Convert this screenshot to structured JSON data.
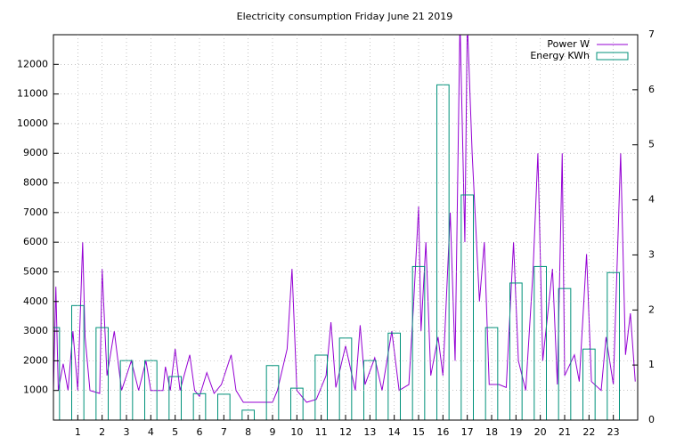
{
  "chart_data": {
    "type": "line",
    "title": "Electricity consumption Friday June 21 2019",
    "xlim": [
      0,
      24
    ],
    "xticks": [
      1,
      2,
      3,
      4,
      5,
      6,
      7,
      8,
      9,
      10,
      11,
      12,
      13,
      14,
      15,
      16,
      17,
      18,
      19,
      20,
      21,
      22,
      23
    ],
    "ylim": [
      0,
      13000
    ],
    "yticks": [
      1000,
      2000,
      3000,
      4000,
      5000,
      6000,
      7000,
      8000,
      9000,
      10000,
      11000,
      12000
    ],
    "y2lim": [
      0,
      7
    ],
    "y2ticks": [
      0,
      1,
      2,
      3,
      4,
      5,
      6,
      7
    ],
    "grid": true,
    "legend": "top-right",
    "series": [
      {
        "name": "Power W",
        "color": "#9400d3",
        "type": "line",
        "x": [
          0,
          0.1,
          0.2,
          0.4,
          0.6,
          0.8,
          1.0,
          1.2,
          1.3,
          1.5,
          1.9,
          2.0,
          2.2,
          2.5,
          2.8,
          3.2,
          3.5,
          3.8,
          4.0,
          4.5,
          4.6,
          4.8,
          5.0,
          5.2,
          5.6,
          5.8,
          6.0,
          6.3,
          6.6,
          6.9,
          7.3,
          7.5,
          7.8,
          8.5,
          9.0,
          9.2,
          9.6,
          9.8,
          10.0,
          10.4,
          10.8,
          11.2,
          11.4,
          11.6,
          12.0,
          12.4,
          12.6,
          12.8,
          13.2,
          13.5,
          13.9,
          14.2,
          14.6,
          14.8,
          15.0,
          15.1,
          15.3,
          15.5,
          15.8,
          16.0,
          16.3,
          16.5,
          16.7,
          16.9,
          17.0,
          17.2,
          17.5,
          17.7,
          17.9,
          18.3,
          18.6,
          18.9,
          19.1,
          19.4,
          19.7,
          19.9,
          20.1,
          20.5,
          20.7,
          20.9,
          21.0,
          21.4,
          21.6,
          21.9,
          22.1,
          22.5,
          22.7,
          23.0,
          23.3,
          23.5,
          23.7,
          23.9
        ],
        "values": [
          1000,
          4500,
          1000,
          1900,
          1000,
          3000,
          1000,
          6000,
          2800,
          1000,
          900,
          5100,
          1500,
          3000,
          1000,
          2000,
          1000,
          2000,
          1000,
          1000,
          1800,
          1000,
          2400,
          1000,
          2200,
          1000,
          800,
          1600,
          900,
          1200,
          2200,
          1000,
          600,
          600,
          600,
          1000,
          2400,
          5100,
          1000,
          600,
          700,
          1500,
          3300,
          1100,
          2500,
          1000,
          3200,
          1200,
          2100,
          1000,
          3000,
          1000,
          1200,
          4000,
          7200,
          3000,
          6000,
          1500,
          2800,
          1500,
          7000,
          2000,
          13500,
          6000,
          13500,
          9000,
          4000,
          6000,
          1200,
          1200,
          1100,
          6000,
          2000,
          1000,
          5000,
          9000,
          2000,
          5100,
          1200,
          9000,
          1500,
          2200,
          1300,
          5600,
          1300,
          1000,
          2800,
          1200,
          9000,
          2200,
          3600,
          1300
        ]
      },
      {
        "name": "Energy KWh",
        "color": "#00917a",
        "type": "bar",
        "axis": "y2",
        "x": [
          0,
          1,
          2,
          3,
          4,
          5,
          6,
          7,
          8,
          9,
          10,
          11,
          12,
          13,
          14,
          15,
          16,
          17,
          18,
          19,
          20,
          21,
          22,
          23
        ],
        "values": [
          1.68,
          2.08,
          1.68,
          1.08,
          1.08,
          0.79,
          0.48,
          0.47,
          0.18,
          0.99,
          0.58,
          1.18,
          1.49,
          1.08,
          1.58,
          2.79,
          6.09,
          4.09,
          1.68,
          2.49,
          2.79,
          2.39,
          1.29,
          2.68
        ]
      }
    ]
  }
}
